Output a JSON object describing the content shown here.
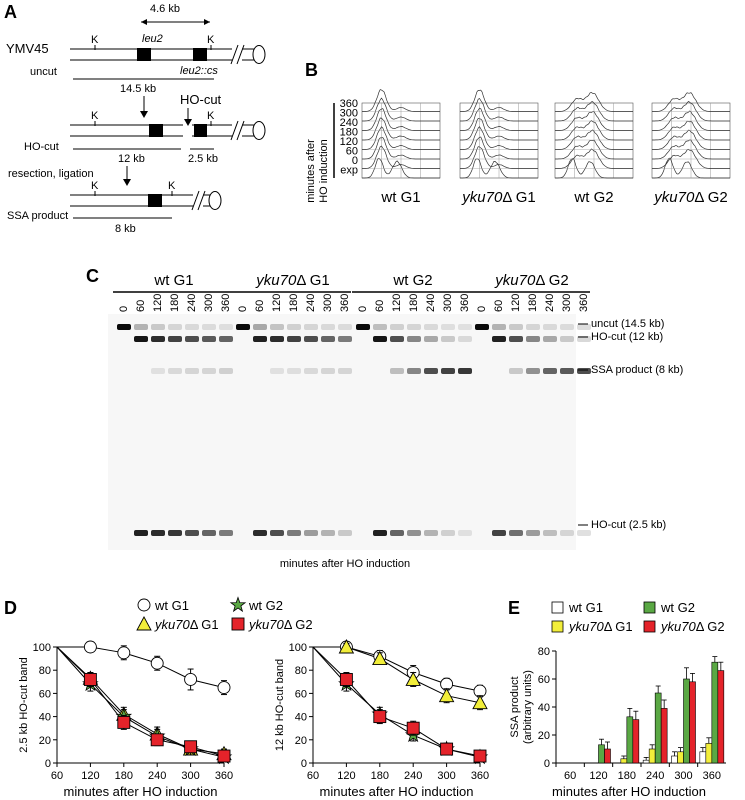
{
  "panel_labels": {
    "a": "A",
    "b": "B",
    "c": "C",
    "d": "D",
    "e": "E"
  },
  "panel_a": {
    "strain": "YMV45",
    "distance_top": "4.6 kb",
    "leu2_label": "leu2",
    "leu2cs_label": "leu2::cs",
    "k_site": "K",
    "uncut_label": "uncut",
    "uncut_size": "14.5 kb",
    "ho_cut_arrow_label": "HO-cut",
    "ho_cut_label": "HO-cut",
    "frag_12": "12 kb",
    "frag_2_5": "2.5 kb",
    "resection_label": "resection, ligation",
    "ssa_label": "SSA product",
    "ssa_size": "8 kb"
  },
  "panel_b": {
    "yaxis_title_line1": "minutes after",
    "yaxis_title_line2": "HO induction",
    "row_labels": [
      "360",
      "300",
      "240",
      "180",
      "120",
      "60",
      "0",
      "exp"
    ],
    "groups": [
      {
        "name": "wt G1",
        "genotype": "",
        "phase": ""
      },
      {
        "name": "",
        "genotype": "yku70",
        "phase": "Δ G1"
      },
      {
        "name": "wt G2",
        "genotype": "",
        "phase": ""
      },
      {
        "name": "",
        "genotype": "yku70",
        "phase": "Δ G2"
      }
    ]
  },
  "panel_c": {
    "groups": [
      {
        "name": "wt G1",
        "genotype": "",
        "phase": ""
      },
      {
        "name": "",
        "genotype": "yku70",
        "phase": "Δ G1"
      },
      {
        "name": "wt G2",
        "genotype": "",
        "phase": ""
      },
      {
        "name": "",
        "genotype": "yku70",
        "phase": "Δ G2"
      }
    ],
    "lanes": [
      "0",
      "60",
      "120",
      "180",
      "240",
      "300",
      "360"
    ],
    "band_labels": [
      "uncut (14.5 kb)",
      "HO-cut (12 kb)",
      "SSA product (8 kb)",
      "HO-cut (2.5 kb)"
    ],
    "xlabel": "minutes after HO induction",
    "band_intensity": {
      "uncut": [
        [
          1.0,
          0.25,
          0.15,
          0.1,
          0.08,
          0.07,
          0.06
        ],
        [
          1.0,
          0.3,
          0.18,
          0.12,
          0.1,
          0.08,
          0.07
        ],
        [
          1.0,
          0.2,
          0.12,
          0.1,
          0.08,
          0.06,
          0.05
        ],
        [
          1.0,
          0.25,
          0.15,
          0.1,
          0.08,
          0.07,
          0.06
        ]
      ],
      "ho12": [
        [
          0,
          0.95,
          0.85,
          0.75,
          0.7,
          0.65,
          0.6
        ],
        [
          0,
          0.9,
          0.85,
          0.75,
          0.7,
          0.6,
          0.5
        ],
        [
          0,
          0.95,
          0.7,
          0.45,
          0.3,
          0.15,
          0.08
        ],
        [
          0,
          0.9,
          0.7,
          0.45,
          0.3,
          0.15,
          0.08
        ]
      ],
      "ssa": [
        [
          0,
          0,
          0.05,
          0.08,
          0.1,
          0.1,
          0.12
        ],
        [
          0,
          0,
          0.05,
          0.06,
          0.08,
          0.1,
          0.1
        ],
        [
          0,
          0,
          0.2,
          0.45,
          0.7,
          0.75,
          0.8
        ],
        [
          0,
          0,
          0.15,
          0.4,
          0.6,
          0.65,
          0.7
        ]
      ],
      "ho25": [
        [
          0,
          0.9,
          0.85,
          0.8,
          0.7,
          0.6,
          0.5
        ],
        [
          0,
          0.85,
          0.7,
          0.5,
          0.35,
          0.25,
          0.15
        ],
        [
          0,
          0.9,
          0.6,
          0.4,
          0.25,
          0.12,
          0.05
        ],
        [
          0,
          0.75,
          0.55,
          0.35,
          0.2,
          0.1,
          0.05
        ]
      ]
    }
  },
  "legend_d": [
    {
      "genotype": "",
      "text": "wt G1"
    },
    {
      "genotype": "yku70",
      "text": "Δ G1"
    },
    {
      "genotype": "",
      "text": "wt G2"
    },
    {
      "genotype": "yku70",
      "text": "Δ G2"
    }
  ],
  "legend_e": [
    {
      "genotype": "",
      "text": "wt G1"
    },
    {
      "genotype": "yku70",
      "text": "Δ G1"
    },
    {
      "genotype": "",
      "text": "wt G2"
    },
    {
      "genotype": "yku70",
      "text": "Δ G2"
    }
  ],
  "colors": {
    "wt_g1": "#ffffff",
    "yku70_g1": "#f2ee3a",
    "wt_g2": "#5aa844",
    "yku70_g2": "#e4232a",
    "gel_bg": "#f7f7f7"
  },
  "chart_data": [
    {
      "type": "line",
      "xlabel": "minutes after HO induction",
      "ylabel": "2.5 kb HO-cut band",
      "x": [
        60,
        120,
        180,
        240,
        300,
        360
      ],
      "xlim": [
        60,
        360
      ],
      "ylim": [
        0,
        100
      ],
      "xticks": [
        "60",
        "120",
        "180",
        "240",
        "300",
        "360"
      ],
      "yticks": [
        "0",
        "20",
        "40",
        "60",
        "80",
        "100"
      ],
      "series": [
        {
          "values": [
            100,
            100,
            95,
            86,
            72,
            65
          ],
          "errors": [
            0,
            3,
            6,
            6,
            9,
            6
          ]
        },
        {
          "values": [
            100,
            73,
            42,
            25,
            12,
            8
          ],
          "errors": [
            0,
            5,
            6,
            6,
            5,
            4
          ]
        },
        {
          "values": [
            100,
            68,
            40,
            23,
            12,
            5
          ],
          "errors": [
            0,
            6,
            6,
            6,
            5,
            4
          ]
        },
        {
          "values": [
            100,
            72,
            35,
            20,
            14,
            6
          ],
          "errors": [
            0,
            6,
            6,
            5,
            5,
            4
          ]
        }
      ]
    },
    {
      "type": "line",
      "xlabel": "minutes after HO induction",
      "ylabel": "12 kb HO-cut band",
      "x": [
        60,
        120,
        180,
        240,
        300,
        360
      ],
      "xlim": [
        60,
        360
      ],
      "ylim": [
        0,
        100
      ],
      "xticks": [
        "60",
        "120",
        "180",
        "240",
        "300",
        "360"
      ],
      "yticks": [
        "0",
        "20",
        "40",
        "60",
        "80",
        "100"
      ],
      "series": [
        {
          "values": [
            100,
            100,
            92,
            78,
            68,
            62
          ],
          "errors": [
            0,
            3,
            5,
            6,
            5,
            5
          ]
        },
        {
          "values": [
            100,
            100,
            90,
            72,
            58,
            52
          ],
          "errors": [
            0,
            3,
            5,
            6,
            6,
            6
          ]
        },
        {
          "values": [
            100,
            68,
            42,
            24,
            12,
            5
          ],
          "errors": [
            0,
            6,
            6,
            5,
            5,
            4
          ]
        },
        {
          "values": [
            100,
            72,
            40,
            30,
            12,
            6
          ],
          "errors": [
            0,
            6,
            6,
            6,
            5,
            4
          ]
        }
      ]
    },
    {
      "type": "bar",
      "xlabel": "minutes after HO induction",
      "ylabel_line1": "SSA product",
      "ylabel_line2": "(arbitrary units)",
      "categories": [
        "60",
        "120",
        "180",
        "240",
        "300",
        "360"
      ],
      "ylim": [
        0,
        80
      ],
      "yticks": [
        "0",
        "20",
        "40",
        "60",
        "80"
      ],
      "series": [
        {
          "values": [
            0,
            0,
            0,
            2,
            5,
            8
          ],
          "errors": [
            0,
            0,
            0,
            2,
            3,
            3
          ]
        },
        {
          "values": [
            0,
            0,
            3,
            10,
            8,
            14
          ],
          "errors": [
            0,
            0,
            2,
            3,
            3,
            4
          ]
        },
        {
          "values": [
            0,
            13,
            33,
            50,
            60,
            72
          ],
          "errors": [
            0,
            4,
            6,
            5,
            8,
            4
          ]
        },
        {
          "values": [
            0,
            10,
            31,
            39,
            58,
            66
          ],
          "errors": [
            0,
            5,
            6,
            6,
            6,
            6
          ]
        }
      ]
    }
  ]
}
